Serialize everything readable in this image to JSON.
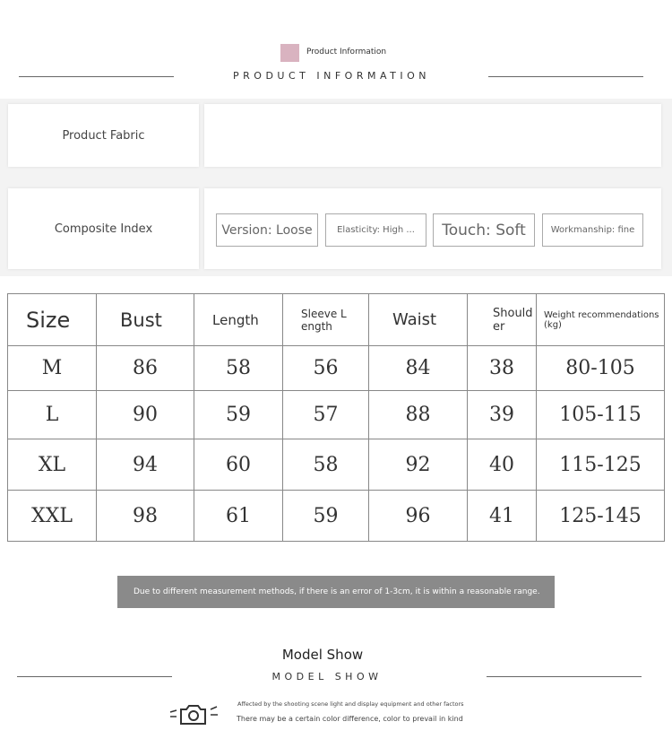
{
  "header": {
    "small_title": "Product Information",
    "spaced_title": "PRODUCT INFORMATION",
    "swatch_color": "#d9b3c0"
  },
  "fabric": {
    "label": "Product Fabric",
    "value": ""
  },
  "composite": {
    "label": "Composite Index",
    "chips": [
      "Version: Loose",
      "Elasticity: High ...",
      "Touch: Soft",
      "Workmanship: fine"
    ]
  },
  "size_table": {
    "headers": [
      "Size",
      "Bust",
      "Length",
      "Sleeve L ength",
      "Waist",
      "Shoulder",
      "Weight recommendations (kg)"
    ],
    "rows": [
      [
        "M",
        "86",
        "58",
        "56",
        "84",
        "38",
        "80-105"
      ],
      [
        "L",
        "90",
        "59",
        "57",
        "88",
        "39",
        "105-115"
      ],
      [
        "XL",
        "94",
        "60",
        "58",
        "92",
        "40",
        "115-125"
      ],
      [
        "XXL",
        "98",
        "61",
        "59",
        "96",
        "41",
        "125-145"
      ]
    ]
  },
  "note": "Due to different measurement methods, if there is an error of 1-3cm, it is within a reasonable range.",
  "model": {
    "title": "Model Show",
    "spaced_title": "MODEL SHOW",
    "line1": "Affected by the shooting scene light and display equipment and other factors",
    "line2": "There may be a certain color difference, color to prevail in kind"
  }
}
